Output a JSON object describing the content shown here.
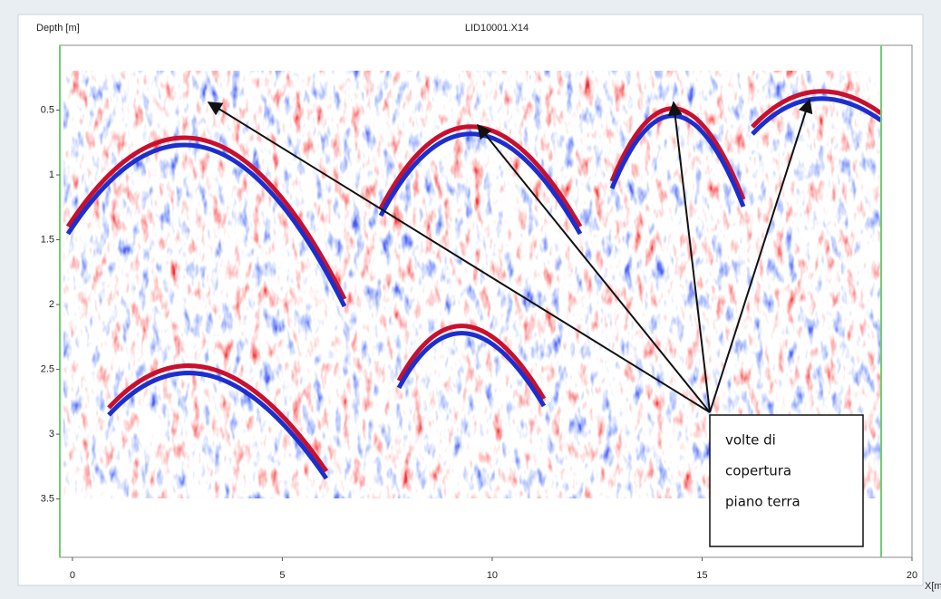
{
  "plot": {
    "title": "LID10001.X14",
    "y_label": "Depth [m]",
    "x_label": "X[m]",
    "xlim": [
      -0.3,
      20
    ],
    "ylim": [
      0,
      3.95
    ],
    "xticks": [
      0,
      5,
      10,
      15,
      20
    ],
    "yticks": [
      0.5,
      1,
      1.5,
      2,
      2.5,
      3,
      3.5
    ]
  },
  "annotation": {
    "lines": [
      "volte di",
      "copertura",
      "piano terra"
    ]
  }
}
